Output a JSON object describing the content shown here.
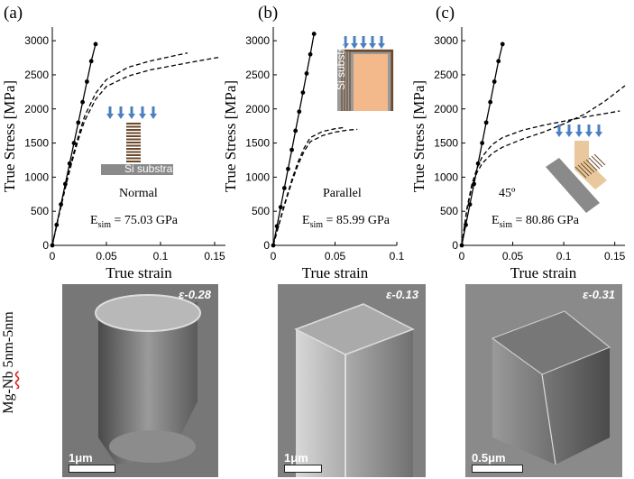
{
  "panel_labels": [
    "(a)",
    "(b)",
    "(c)"
  ],
  "side_label_parts": [
    "Mg-",
    "Nb",
    " 5nm-5nm"
  ],
  "chart_data": [
    {
      "type": "line",
      "panel": "(a)",
      "xlabel": "True strain",
      "ylabel": "True Stress [MPa]",
      "xlim": [
        0,
        0.16
      ],
      "ylim": [
        0,
        3200
      ],
      "xticks": [
        0,
        0.05,
        0.1,
        0.15
      ],
      "xtick_labels": [
        "0",
        "0.05",
        "0.1",
        "0.15"
      ],
      "yticks": [
        0,
        500,
        1000,
        1500,
        2000,
        2500,
        3000
      ],
      "ytick_labels": [
        "0",
        "500",
        "1000",
        "1500",
        "2000",
        "2500",
        "3000"
      ],
      "annotation": "Normal",
      "inset_label": "Si substrate",
      "esim_prefix": "E",
      "esim_sub": "sim",
      "esim_value": " = 75.03 GPa",
      "series": [
        {
          "style": "solid-marked",
          "x": [
            0,
            0.004,
            0.008,
            0.012,
            0.016,
            0.02,
            0.024,
            0.028,
            0.032,
            0.036,
            0.04
          ],
          "y": [
            0,
            300,
            600,
            900,
            1200,
            1500,
            1800,
            2100,
            2400,
            2700,
            2950
          ]
        },
        {
          "style": "dashed",
          "x": [
            0,
            0.005,
            0.01,
            0.015,
            0.02,
            0.025,
            0.03,
            0.04,
            0.05,
            0.07,
            0.09,
            0.11,
            0.13,
            0.155
          ],
          "y": [
            0,
            360,
            700,
            1030,
            1330,
            1600,
            1830,
            2140,
            2330,
            2480,
            2570,
            2630,
            2690,
            2760
          ]
        },
        {
          "style": "dashed",
          "x": [
            0,
            0.005,
            0.01,
            0.015,
            0.02,
            0.025,
            0.03,
            0.04,
            0.05,
            0.07,
            0.09,
            0.11,
            0.125
          ],
          "y": [
            0,
            370,
            720,
            1060,
            1370,
            1650,
            1900,
            2230,
            2430,
            2610,
            2700,
            2770,
            2820
          ]
        }
      ]
    },
    {
      "type": "line",
      "panel": "(b)",
      "xlabel": "True strain",
      "ylabel": "True Stress [MPa]",
      "xlim": [
        0,
        0.1
      ],
      "ylim": [
        0,
        3200
      ],
      "xticks": [
        0,
        0.05,
        0.1
      ],
      "xtick_labels": [
        "0",
        "0.05",
        "0.1"
      ],
      "yticks": [
        0,
        500,
        1000,
        1500,
        2000,
        2500,
        3000
      ],
      "ytick_labels": [
        "0",
        "500",
        "1000",
        "1500",
        "2000",
        "2500",
        "3000"
      ],
      "annotation": "Parallel",
      "inset_label": "Si substrate",
      "esim_prefix": "E",
      "esim_sub": "sim",
      "esim_value": " = 85.99 GPa",
      "series": [
        {
          "style": "solid-marked",
          "x": [
            0,
            0.003,
            0.006,
            0.009,
            0.012,
            0.015,
            0.018,
            0.021,
            0.024,
            0.027,
            0.03,
            0.033
          ],
          "y": [
            0,
            280,
            560,
            840,
            1120,
            1400,
            1680,
            1960,
            2240,
            2520,
            2800,
            3100
          ]
        },
        {
          "style": "dashed",
          "x": [
            0,
            0.005,
            0.01,
            0.015,
            0.02,
            0.025,
            0.03,
            0.04,
            0.05,
            0.06,
            0.068
          ],
          "y": [
            0,
            330,
            640,
            930,
            1180,
            1380,
            1520,
            1610,
            1660,
            1690,
            1700
          ]
        },
        {
          "style": "dashed",
          "x": [
            0,
            0.005,
            0.01,
            0.015,
            0.02,
            0.025,
            0.03,
            0.04,
            0.05,
            0.058
          ],
          "y": [
            0,
            340,
            660,
            960,
            1220,
            1430,
            1580,
            1670,
            1710,
            1730
          ]
        }
      ]
    },
    {
      "type": "line",
      "panel": "(c)",
      "xlabel": "True strain",
      "ylabel": "True Stress [MPa]",
      "xlim": [
        0,
        0.16
      ],
      "ylim": [
        0,
        3200
      ],
      "xticks": [
        0,
        0.05,
        0.1,
        0.15
      ],
      "xtick_labels": [
        "0",
        "0.05",
        "0.1",
        "0.15"
      ],
      "yticks": [
        0,
        500,
        1000,
        1500,
        2000,
        2500,
        3000
      ],
      "ytick_labels": [
        "0",
        "500",
        "1000",
        "1500",
        "2000",
        "2500",
        "3000"
      ],
      "annotation": "45º",
      "esim_prefix": "E",
      "esim_sub": "sim",
      "esim_value": " = 80.86 GPa",
      "series": [
        {
          "style": "solid-marked",
          "x": [
            0,
            0.004,
            0.008,
            0.012,
            0.016,
            0.02,
            0.024,
            0.028,
            0.032,
            0.036,
            0.04
          ],
          "y": [
            0,
            300,
            600,
            900,
            1200,
            1500,
            1800,
            2100,
            2400,
            2700,
            2950
          ]
        },
        {
          "style": "dashed",
          "x": [
            0,
            0.005,
            0.01,
            0.015,
            0.02,
            0.03,
            0.04,
            0.06,
            0.08,
            0.1,
            0.12,
            0.14,
            0.16
          ],
          "y": [
            0,
            520,
            860,
            1070,
            1200,
            1350,
            1440,
            1560,
            1660,
            1780,
            1920,
            2110,
            2340
          ]
        },
        {
          "style": "dashed",
          "x": [
            0,
            0.005,
            0.01,
            0.015,
            0.02,
            0.03,
            0.04,
            0.06,
            0.08,
            0.1,
            0.12,
            0.14,
            0.155
          ],
          "y": [
            0,
            540,
            900,
            1130,
            1300,
            1480,
            1580,
            1690,
            1760,
            1820,
            1880,
            1930,
            1970
          ]
        }
      ]
    }
  ],
  "sem_images": [
    {
      "strain_label": "ε-0.28",
      "scale_label": "1μm"
    },
    {
      "strain_label": "ε-0.13",
      "scale_label": "1μm"
    },
    {
      "strain_label": "ε-0.31",
      "scale_label": "0.5μm"
    }
  ],
  "colors": {
    "curve": "#000000",
    "arrow": "#4a7fc1",
    "layer_dark": "#6b4a2b",
    "layer_light": "#e8c89c",
    "substrate": "#8a8a8a",
    "pillar_b": "#f4b98a"
  }
}
